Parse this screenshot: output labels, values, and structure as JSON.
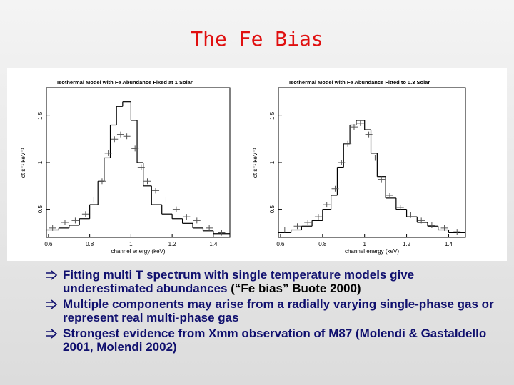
{
  "title": "The Fe Bias",
  "chart_data": [
    {
      "type": "step",
      "title": "Isothermal Model with Fe Abundance Fixed at 1 Solar",
      "x_label": "channel energy (keV)",
      "y_label": "ct s⁻¹ keV⁻¹",
      "xlim": [
        0.59,
        1.48
      ],
      "ylim": [
        0.2,
        1.8
      ],
      "xticks": [
        0.6,
        0.8,
        1,
        1.2,
        1.4
      ],
      "yticks": [
        0.5,
        1,
        1.5
      ],
      "model_color": "#000000",
      "points_color": "#555555",
      "bins": [
        0.59,
        0.65,
        0.7,
        0.75,
        0.8,
        0.84,
        0.87,
        0.9,
        0.93,
        0.96,
        1.0,
        1.03,
        1.06,
        1.1,
        1.15,
        1.2,
        1.25,
        1.3,
        1.35,
        1.4,
        1.48
      ],
      "values": [
        0.28,
        0.3,
        0.33,
        0.4,
        0.55,
        0.8,
        1.05,
        1.4,
        1.6,
        1.65,
        1.45,
        1.0,
        0.75,
        0.55,
        0.45,
        0.4,
        0.35,
        0.3,
        0.27,
        0.24
      ],
      "x": [
        0.62,
        0.68,
        0.73,
        0.78,
        0.82,
        0.86,
        0.89,
        0.92,
        0.95,
        0.98,
        1.02,
        1.05,
        1.08,
        1.12,
        1.17,
        1.22,
        1.27,
        1.32,
        1.38,
        1.44
      ],
      "points": [
        0.3,
        0.36,
        0.38,
        0.45,
        0.6,
        0.8,
        1.1,
        1.25,
        1.3,
        1.28,
        1.15,
        0.95,
        0.8,
        0.7,
        0.6,
        0.5,
        0.42,
        0.38,
        0.3,
        0.25
      ]
    },
    {
      "type": "step",
      "title": "Isothermal Model with Fe Abundance Fitted to 0.3 Solar",
      "x_label": "channel energy (keV)",
      "y_label": "ct s⁻¹ keV⁻¹",
      "xlim": [
        0.59,
        1.48
      ],
      "ylim": [
        0.2,
        1.8
      ],
      "xticks": [
        0.6,
        0.8,
        1,
        1.2,
        1.4
      ],
      "yticks": [
        0.5,
        1,
        1.5
      ],
      "model_color": "#000000",
      "points_color": "#555555",
      "bins": [
        0.59,
        0.65,
        0.7,
        0.75,
        0.8,
        0.84,
        0.87,
        0.9,
        0.93,
        0.96,
        1.0,
        1.03,
        1.06,
        1.1,
        1.15,
        1.2,
        1.25,
        1.3,
        1.35,
        1.4,
        1.48
      ],
      "values": [
        0.25,
        0.28,
        0.32,
        0.38,
        0.5,
        0.65,
        0.95,
        1.2,
        1.4,
        1.45,
        1.35,
        1.1,
        0.85,
        0.62,
        0.5,
        0.42,
        0.36,
        0.32,
        0.28,
        0.25
      ],
      "x": [
        0.62,
        0.68,
        0.73,
        0.78,
        0.82,
        0.86,
        0.89,
        0.92,
        0.95,
        0.98,
        1.02,
        1.05,
        1.08,
        1.12,
        1.17,
        1.22,
        1.27,
        1.32,
        1.38,
        1.44
      ],
      "points": [
        0.28,
        0.32,
        0.36,
        0.42,
        0.55,
        0.72,
        1.0,
        1.2,
        1.38,
        1.42,
        1.3,
        1.05,
        0.82,
        0.65,
        0.52,
        0.44,
        0.38,
        0.33,
        0.3,
        0.26
      ]
    }
  ],
  "bullets": [
    {
      "text": "Fitting multi T spectrum with single temperature models give underestimated abundances",
      "citation": "(“Fe bias” Buote 2000)"
    },
    {
      "text": "Multiple components may arise from a radially varying single-phase gas or represent real multi-phase gas"
    },
    {
      "text": "Strongest evidence from Xmm observation of M87 (Molendi & Gastaldello 2001, Molendi 2002)"
    }
  ]
}
